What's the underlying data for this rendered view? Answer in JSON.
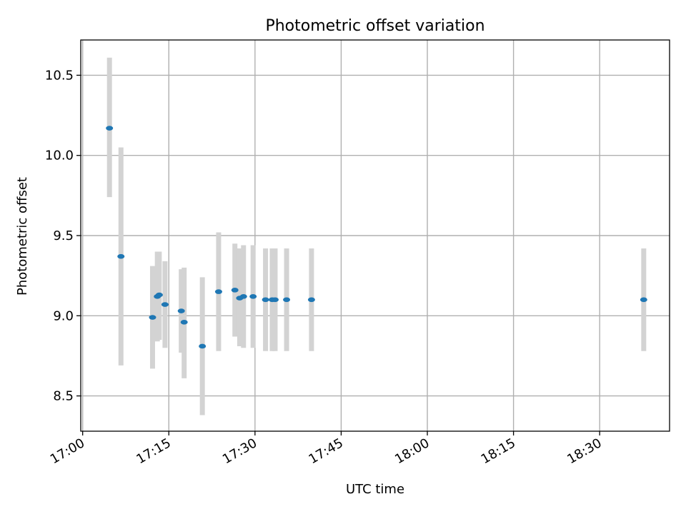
{
  "chart_data": {
    "type": "scatter",
    "title": "Photometric offset variation",
    "xlabel": "UTC time",
    "ylabel": "Photometric offset",
    "grid": true,
    "x_ticks": [
      "17:00",
      "17:15",
      "17:30",
      "17:45",
      "18:00",
      "18:15",
      "18:30"
    ],
    "y_ticks": [
      "8.5",
      "9.0",
      "9.5",
      "10.0",
      "10.5"
    ],
    "xlim": [
      "16:59:40",
      "18:42:10"
    ],
    "ylim": [
      8.28,
      10.72
    ],
    "colors": {
      "points": "#1f77b4",
      "errorbars": "#d3d3d3",
      "grid": "#b0b0b0"
    },
    "series": [
      {
        "points": [
          {
            "x": "17:04:40",
            "y": 10.17,
            "yerr_low": 9.74,
            "yerr_high": 10.61
          },
          {
            "x": "17:06:40",
            "y": 9.37,
            "yerr_low": 8.69,
            "yerr_high": 10.05
          },
          {
            "x": "17:12:10",
            "y": 8.99,
            "yerr_low": 8.67,
            "yerr_high": 9.31
          },
          {
            "x": "17:13:00",
            "y": 9.12,
            "yerr_low": 8.84,
            "yerr_high": 9.4
          },
          {
            "x": "17:13:20",
            "y": 9.13,
            "yerr_low": 8.85,
            "yerr_high": 9.4
          },
          {
            "x": "17:14:20",
            "y": 9.07,
            "yerr_low": 8.8,
            "yerr_high": 9.34
          },
          {
            "x": "17:17:10",
            "y": 9.03,
            "yerr_low": 8.77,
            "yerr_high": 9.29
          },
          {
            "x": "17:17:40",
            "y": 8.96,
            "yerr_low": 8.61,
            "yerr_high": 9.3
          },
          {
            "x": "17:20:50",
            "y": 8.81,
            "yerr_low": 8.38,
            "yerr_high": 9.24
          },
          {
            "x": "17:23:40",
            "y": 9.15,
            "yerr_low": 8.78,
            "yerr_high": 9.52
          },
          {
            "x": "17:26:30",
            "y": 9.16,
            "yerr_low": 8.87,
            "yerr_high": 9.45
          },
          {
            "x": "17:27:20",
            "y": 9.11,
            "yerr_low": 8.81,
            "yerr_high": 9.42
          },
          {
            "x": "17:28:00",
            "y": 9.12,
            "yerr_low": 8.8,
            "yerr_high": 9.44
          },
          {
            "x": "17:29:40",
            "y": 9.12,
            "yerr_low": 8.8,
            "yerr_high": 9.44
          },
          {
            "x": "17:31:50",
            "y": 9.1,
            "yerr_low": 8.78,
            "yerr_high": 9.42
          },
          {
            "x": "17:33:00",
            "y": 9.1,
            "yerr_low": 8.78,
            "yerr_high": 9.42
          },
          {
            "x": "17:33:30",
            "y": 9.1,
            "yerr_low": 8.78,
            "yerr_high": 9.42
          },
          {
            "x": "17:35:30",
            "y": 9.1,
            "yerr_low": 8.78,
            "yerr_high": 9.42
          },
          {
            "x": "17:39:50",
            "y": 9.1,
            "yerr_low": 8.78,
            "yerr_high": 9.42
          },
          {
            "x": "18:37:40",
            "y": 9.1,
            "yerr_low": 8.78,
            "yerr_high": 9.42
          }
        ]
      }
    ]
  }
}
